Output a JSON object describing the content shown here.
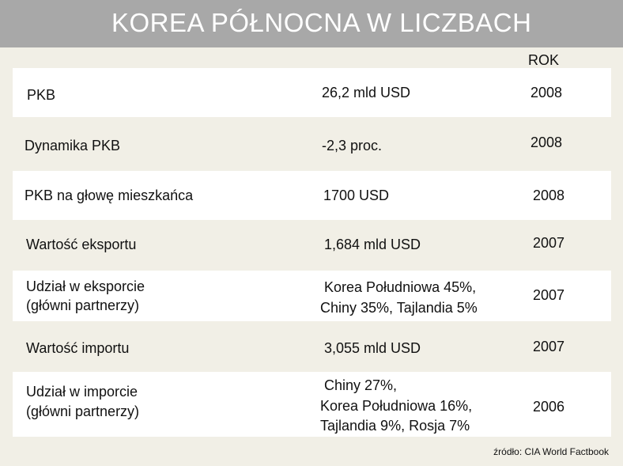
{
  "title": "KOREA PÓŁNOCNA W LICZBACH",
  "year_header": "ROK",
  "rows": [
    {
      "label": [
        "PKB"
      ],
      "value": [
        "26,2 mld USD"
      ],
      "year": "2008"
    },
    {
      "label": [
        "Dynamika PKB"
      ],
      "value": [
        "-2,3 proc."
      ],
      "year": "2008"
    },
    {
      "label": [
        "PKB na głowę mieszkańca"
      ],
      "value": [
        "1700 USD"
      ],
      "year": "2008"
    },
    {
      "label": [
        "Wartość eksportu"
      ],
      "value": [
        "1,684 mld USD"
      ],
      "year": "2007"
    },
    {
      "label": [
        "Udział w eksporcie",
        "(główni partnerzy)"
      ],
      "value": [
        " Korea Południowa 45%,",
        "Chiny 35%, Tajlandia 5%"
      ],
      "year": "2007"
    },
    {
      "label": [
        "Wartość importu"
      ],
      "value": [
        "3,055 mld USD"
      ],
      "year": "2007"
    },
    {
      "label": [
        "Udział w imporcie",
        "(główni partnerzy)"
      ],
      "value": [
        " Chiny 27%,",
        "Korea Południowa 16%,",
        "Tajlandia 9%, Rosja 7%"
      ],
      "year": "2006"
    }
  ],
  "source": "źródło: CIA World Factbook",
  "colors": {
    "title_bar": "#a8a8a8",
    "page_bg": "#f1efe6",
    "band": "#ffffff"
  }
}
